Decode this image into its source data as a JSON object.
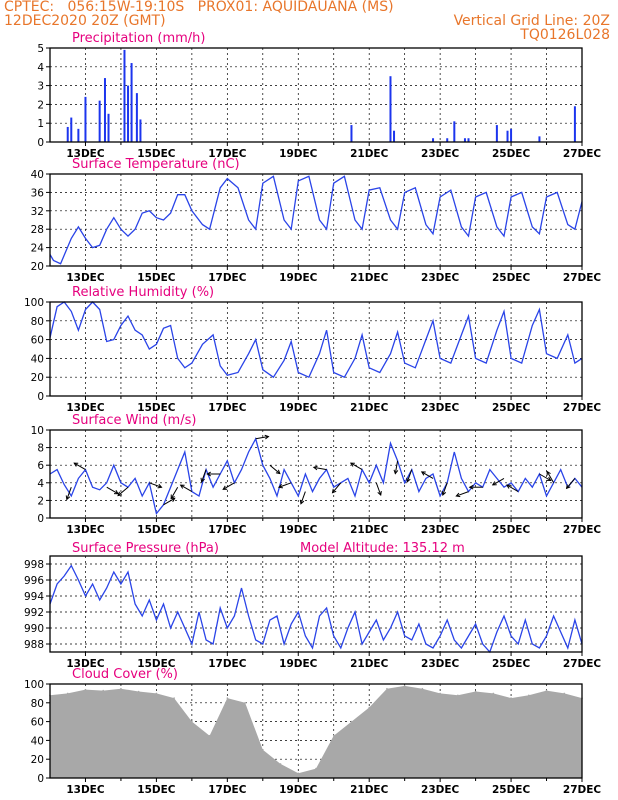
{
  "header": {
    "line1_left": "CPTEC:   056:15W-19:10S   PROX01: AQUIDAUANA (MS)",
    "line2_left": "12DEC2020 20Z (GMT)",
    "line2_right": "Vertical Grid Line: 20Z",
    "line3_right": "TQ0126L028"
  },
  "colors": {
    "header": "#e8762b",
    "title": "#e6007e",
    "line": "#2a44e8",
    "bar": "#1c35ee",
    "cloud": "#a8a8a8"
  },
  "x_tick_labels": [
    "13DEC",
    "15DEC",
    "17DEC",
    "19DEC",
    "21DEC",
    "23DEC",
    "25DEC",
    "27DEC"
  ],
  "panels": {
    "precip": {
      "title": "Precipitation (mm/h)"
    },
    "temp": {
      "title": "Surface Temperature (nC)"
    },
    "rh": {
      "title": "Relative Humidity (%)"
    },
    "wind": {
      "title": "Surface Wind (m/s)"
    },
    "press": {
      "title": "Surface Pressure (hPa)",
      "extra": "Model Altitude: 135.12 m"
    },
    "cloud": {
      "title": "Cloud Cover (%)"
    }
  },
  "chart_data": [
    {
      "type": "bar",
      "title": "Precipitation (mm/h)",
      "x_unit": "day of Dec 2020",
      "ylim": [
        0,
        5
      ],
      "yticks": [
        0,
        1,
        2,
        3,
        4,
        5
      ],
      "x": [
        12.5,
        12.6,
        12.8,
        13.0,
        13.4,
        13.55,
        13.65,
        14.1,
        14.2,
        14.3,
        14.45,
        14.55,
        20.5,
        21.6,
        21.7,
        22.8,
        23.2,
        23.4,
        23.7,
        23.8,
        24.6,
        24.9,
        25.0,
        25.8,
        26.8
      ],
      "values": [
        0.8,
        1.3,
        0.7,
        2.4,
        2.2,
        3.4,
        1.5,
        4.9,
        3.0,
        4.2,
        2.6,
        1.2,
        0.9,
        3.5,
        0.6,
        0.2,
        0.2,
        1.1,
        0.2,
        0.2,
        0.9,
        0.6,
        0.7,
        0.3,
        1.9
      ]
    },
    {
      "type": "line",
      "title": "Surface Temperature (nC)",
      "ylim": [
        20,
        40
      ],
      "yticks": [
        20,
        24,
        28,
        32,
        36,
        40
      ],
      "x": [
        12.0,
        12.1,
        12.3,
        12.6,
        12.8,
        13.0,
        13.2,
        13.4,
        13.6,
        13.8,
        14.0,
        14.2,
        14.4,
        14.6,
        14.8,
        15.0,
        15.2,
        15.4,
        15.6,
        15.8,
        16.0,
        16.3,
        16.5,
        16.8,
        17.0,
        17.3,
        17.6,
        17.8,
        18.0,
        18.3,
        18.6,
        18.8,
        19.0,
        19.3,
        19.6,
        19.8,
        20.0,
        20.3,
        20.6,
        20.8,
        21.0,
        21.3,
        21.6,
        21.8,
        22.0,
        22.3,
        22.6,
        22.8,
        23.0,
        23.3,
        23.6,
        23.8,
        24.0,
        24.3,
        24.6,
        24.8,
        25.0,
        25.3,
        25.6,
        25.8,
        26.0,
        26.3,
        26.6,
        26.8,
        27.0
      ],
      "values": [
        22.5,
        21.2,
        20.5,
        26.0,
        28.5,
        26.0,
        24.0,
        24.5,
        28.0,
        30.5,
        28.0,
        26.5,
        28.0,
        31.5,
        32.0,
        30.5,
        30.0,
        31.5,
        35.5,
        35.5,
        32.0,
        29.0,
        28.0,
        37.0,
        39.0,
        37.0,
        30.0,
        28.0,
        38.0,
        39.5,
        30.0,
        28.0,
        38.5,
        39.5,
        30.0,
        28.0,
        38.0,
        39.5,
        30.0,
        28.0,
        36.5,
        37.0,
        30.0,
        28.0,
        36.0,
        37.0,
        29.0,
        27.0,
        35.0,
        36.5,
        28.5,
        26.5,
        35.0,
        36.0,
        28.5,
        26.5,
        35.0,
        36.0,
        28.5,
        27.0,
        35.0,
        36.0,
        29.0,
        28.0,
        34.0
      ]
    },
    {
      "type": "line",
      "title": "Relative Humidity (%)",
      "ylim": [
        0,
        100
      ],
      "yticks": [
        0,
        20,
        40,
        60,
        80,
        100
      ],
      "x": [
        12.0,
        12.2,
        12.4,
        12.6,
        12.8,
        13.0,
        13.2,
        13.4,
        13.6,
        13.8,
        14.0,
        14.2,
        14.4,
        14.6,
        14.8,
        15.0,
        15.2,
        15.4,
        15.6,
        15.8,
        16.0,
        16.3,
        16.6,
        16.8,
        17.0,
        17.3,
        17.6,
        17.8,
        18.0,
        18.3,
        18.6,
        18.8,
        19.0,
        19.3,
        19.6,
        19.8,
        20.0,
        20.3,
        20.6,
        20.8,
        21.0,
        21.3,
        21.6,
        21.8,
        22.0,
        22.3,
        22.6,
        22.8,
        23.0,
        23.3,
        23.6,
        23.8,
        24.0,
        24.3,
        24.6,
        24.8,
        25.0,
        25.3,
        25.6,
        25.8,
        26.0,
        26.3,
        26.6,
        26.8,
        27.0
      ],
      "values": [
        62,
        95,
        100,
        90,
        70,
        92,
        100,
        92,
        58,
        60,
        75,
        85,
        70,
        65,
        50,
        55,
        72,
        75,
        40,
        30,
        35,
        55,
        65,
        32,
        22,
        25,
        45,
        60,
        28,
        20,
        38,
        58,
        25,
        20,
        45,
        70,
        25,
        20,
        40,
        65,
        30,
        25,
        45,
        68,
        35,
        30,
        60,
        80,
        40,
        35,
        65,
        85,
        40,
        35,
        70,
        90,
        40,
        35,
        75,
        92,
        45,
        40,
        65,
        35,
        40
      ]
    },
    {
      "type": "line",
      "title": "Surface Wind (m/s)",
      "ylim": [
        0,
        10
      ],
      "yticks": [
        0,
        2,
        4,
        6,
        8,
        10
      ],
      "x": [
        12.0,
        12.2,
        12.4,
        12.6,
        12.8,
        13.0,
        13.2,
        13.4,
        13.6,
        13.8,
        14.0,
        14.2,
        14.4,
        14.6,
        14.8,
        15.0,
        15.2,
        15.4,
        15.6,
        15.8,
        16.0,
        16.2,
        16.4,
        16.6,
        16.8,
        17.0,
        17.2,
        17.4,
        17.6,
        17.8,
        18.0,
        18.2,
        18.4,
        18.6,
        18.8,
        19.0,
        19.2,
        19.4,
        19.6,
        19.8,
        20.0,
        20.2,
        20.4,
        20.6,
        20.8,
        21.0,
        21.2,
        21.4,
        21.6,
        21.8,
        22.0,
        22.2,
        22.4,
        22.6,
        22.8,
        23.0,
        23.2,
        23.4,
        23.6,
        23.8,
        24.0,
        24.2,
        24.4,
        24.6,
        24.8,
        25.0,
        25.2,
        25.4,
        25.6,
        25.8,
        26.0,
        26.2,
        26.4,
        26.6,
        26.8,
        27.0
      ],
      "values": [
        5.0,
        5.5,
        3.8,
        2.5,
        4.5,
        5.5,
        3.5,
        3.2,
        4.0,
        6.0,
        4.0,
        3.5,
        4.5,
        2.5,
        4.0,
        0.5,
        1.5,
        3.5,
        5.5,
        7.5,
        3.0,
        2.5,
        5.5,
        3.5,
        5.0,
        6.5,
        4.0,
        5.5,
        7.5,
        9.0,
        6.0,
        4.5,
        2.5,
        5.5,
        4.0,
        2.5,
        5.0,
        3.0,
        4.5,
        5.5,
        3.5,
        4.0,
        4.5,
        2.5,
        5.5,
        4.0,
        6.0,
        4.0,
        8.5,
        6.5,
        4.0,
        5.5,
        3.0,
        4.5,
        5.0,
        2.5,
        4.0,
        7.5,
        4.5,
        3.0,
        4.0,
        3.5,
        5.5,
        4.5,
        3.5,
        4.0,
        3.0,
        4.5,
        3.5,
        5.0,
        2.5,
        4.0,
        5.5,
        3.5,
        4.5,
        3.5
      ],
      "barbs_x": [
        12.6,
        13.0,
        13.6,
        14.2,
        14.8,
        15.2,
        15.6,
        16.0,
        16.4,
        16.8,
        17.2,
        17.8,
        18.2,
        18.8,
        19.2,
        19.8,
        20.2,
        20.8,
        21.2,
        21.8,
        22.2,
        22.8,
        23.2,
        23.8,
        24.2,
        24.8,
        25.2,
        25.8,
        26.2,
        26.8
      ],
      "barbs_speed": [
        3.5,
        5.5,
        3.5,
        3.5,
        4.0,
        1.5,
        3.5,
        3.0,
        5.5,
        5.0,
        4.0,
        9.0,
        6.0,
        4.0,
        3.0,
        5.5,
        4.0,
        5.5,
        4.0,
        6.5,
        5.5,
        4.5,
        4.0,
        3.0,
        3.5,
        4.5,
        3.0,
        5.0,
        4.0,
        4.5
      ],
      "barbs_dir_deg": [
        200,
        300,
        120,
        230,
        110,
        60,
        210,
        300,
        200,
        270,
        240,
        80,
        130,
        250,
        200,
        280,
        220,
        300,
        160,
        190,
        200,
        300,
        200,
        250,
        270,
        240,
        300,
        120,
        330,
        220
      ]
    },
    {
      "type": "line",
      "title": "Surface Pressure (hPa)",
      "subtitle": "Model Altitude: 135.12 m",
      "ylim": [
        987,
        999
      ],
      "yticks": [
        988,
        990,
        992,
        994,
        996,
        998
      ],
      "x": [
        12.0,
        12.2,
        12.4,
        12.6,
        12.8,
        13.0,
        13.2,
        13.4,
        13.6,
        13.8,
        14.0,
        14.2,
        14.4,
        14.6,
        14.8,
        15.0,
        15.2,
        15.4,
        15.6,
        15.8,
        16.0,
        16.2,
        16.4,
        16.6,
        16.8,
        17.0,
        17.2,
        17.4,
        17.6,
        17.8,
        18.0,
        18.2,
        18.4,
        18.6,
        18.8,
        19.0,
        19.2,
        19.4,
        19.6,
        19.8,
        20.0,
        20.2,
        20.4,
        20.6,
        20.8,
        21.0,
        21.2,
        21.4,
        21.6,
        21.8,
        22.0,
        22.2,
        22.4,
        22.6,
        22.8,
        23.0,
        23.2,
        23.4,
        23.6,
        23.8,
        24.0,
        24.2,
        24.4,
        24.6,
        24.8,
        25.0,
        25.2,
        25.4,
        25.6,
        25.8,
        26.0,
        26.2,
        26.4,
        26.6,
        26.8,
        27.0
      ],
      "values": [
        993.0,
        995.5,
        996.5,
        997.8,
        996.0,
        994.0,
        995.5,
        993.5,
        995.0,
        997.0,
        995.5,
        997.0,
        993.0,
        991.5,
        993.5,
        991.0,
        993.0,
        990.0,
        992.0,
        990.0,
        988.0,
        992.0,
        988.5,
        988.0,
        992.5,
        990.0,
        991.5,
        995.0,
        991.5,
        988.5,
        988.0,
        991.0,
        991.5,
        988.0,
        990.5,
        992.0,
        989.0,
        987.5,
        991.5,
        992.5,
        989.0,
        987.5,
        990.0,
        992.0,
        988.0,
        989.5,
        991.0,
        988.5,
        990.0,
        992.0,
        989.0,
        988.5,
        990.5,
        988.0,
        987.5,
        989.0,
        991.0,
        988.5,
        987.5,
        989.0,
        990.5,
        988.0,
        987.0,
        989.5,
        991.5,
        989.0,
        988.0,
        991.0,
        988.0,
        987.5,
        989.0,
        991.5,
        989.5,
        987.5,
        991.0,
        988.0
      ]
    },
    {
      "type": "bar",
      "title": "Cloud Cover (%)",
      "ylim": [
        0,
        100
      ],
      "yticks": [
        0,
        20,
        40,
        60,
        80,
        100
      ],
      "x": [
        12.0,
        12.5,
        13.0,
        13.5,
        14.0,
        14.5,
        15.0,
        15.5,
        16.0,
        16.5,
        17.0,
        17.5,
        18.0,
        18.5,
        19.0,
        19.5,
        20.0,
        20.5,
        21.0,
        21.5,
        22.0,
        22.5,
        23.0,
        23.5,
        24.0,
        24.5,
        25.0,
        25.5,
        26.0,
        26.5,
        27.0
      ],
      "values": [
        88,
        90,
        94,
        93,
        95,
        92,
        90,
        85,
        60,
        45,
        85,
        80,
        30,
        15,
        5,
        10,
        45,
        60,
        75,
        95,
        98,
        95,
        90,
        88,
        92,
        90,
        85,
        88,
        93,
        90,
        85
      ]
    }
  ]
}
